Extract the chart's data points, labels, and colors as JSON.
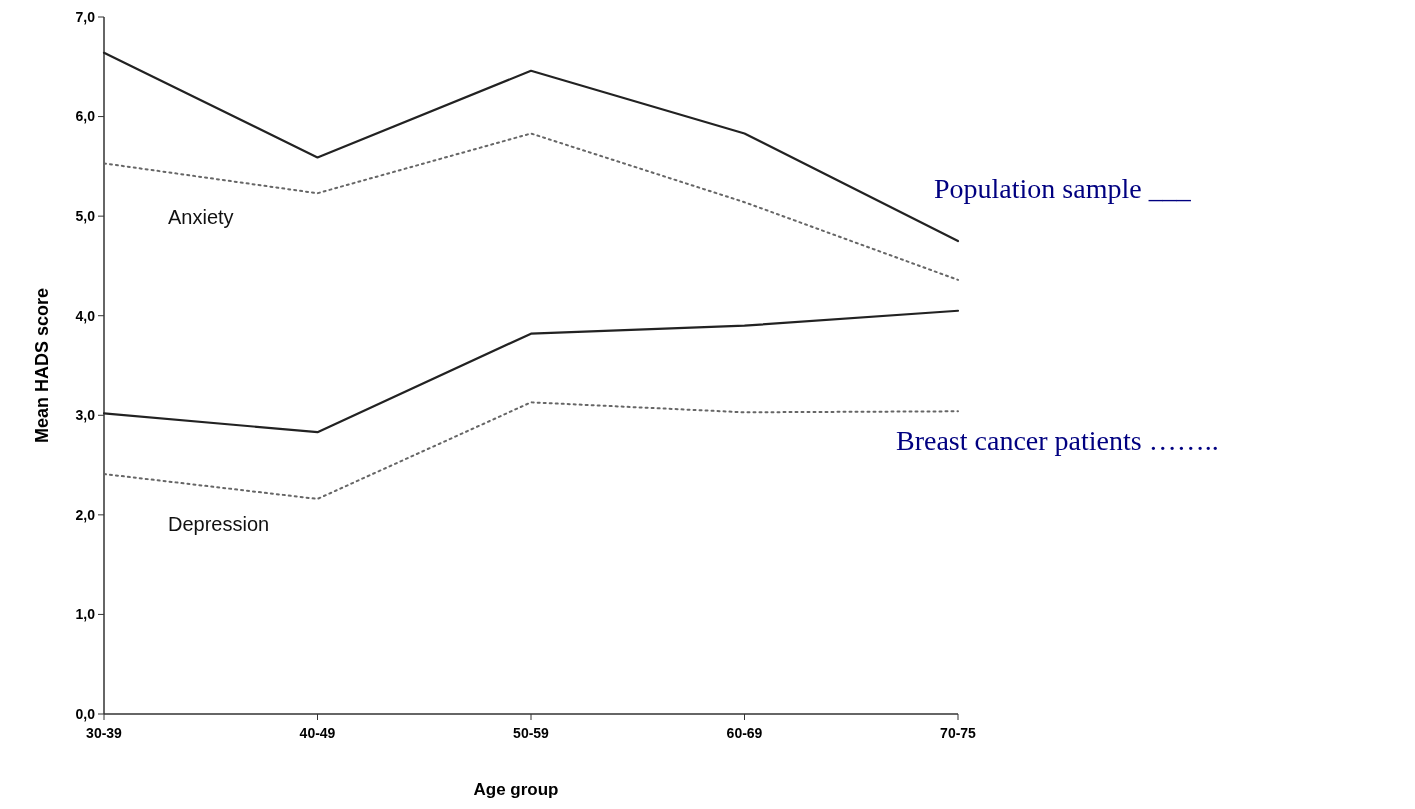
{
  "chart_data": {
    "type": "line",
    "xlabel": "Age group",
    "ylabel": "Mean HADS score",
    "categories": [
      "30-39",
      "40-49",
      "50-59",
      "60-69",
      "70-75"
    ],
    "series": [
      {
        "color": "#222222",
        "line_style": "solid",
        "values": [
          6.64,
          5.59,
          6.46,
          5.83,
          4.75
        ]
      },
      {
        "color": "#666666",
        "line_style": "dotted",
        "values": [
          5.53,
          5.23,
          5.83,
          5.14,
          4.36
        ]
      },
      {
        "color": "#222222",
        "line_style": "solid",
        "values": [
          3.02,
          2.83,
          3.82,
          3.9,
          4.05
        ]
      },
      {
        "color": "#666666",
        "line_style": "dotted",
        "values": [
          2.41,
          2.16,
          3.13,
          3.03,
          3.04
        ]
      }
    ],
    "ylim": [
      0,
      7
    ],
    "yticks": [
      {
        "value": 0,
        "label": "0,0"
      },
      {
        "value": 1,
        "label": "1,0"
      },
      {
        "value": 2,
        "label": "2,0"
      },
      {
        "value": 3,
        "label": "3,0"
      },
      {
        "value": 4,
        "label": "4,0"
      },
      {
        "value": 5,
        "label": "5,0"
      },
      {
        "value": 6,
        "label": "6,0"
      },
      {
        "value": 7,
        "label": "7,0"
      }
    ],
    "grid": false,
    "marker": "none",
    "annotations": [
      "Anxiety",
      "Depression",
      "Population sample ___",
      "Breast cancer patients …….."
    ]
  }
}
